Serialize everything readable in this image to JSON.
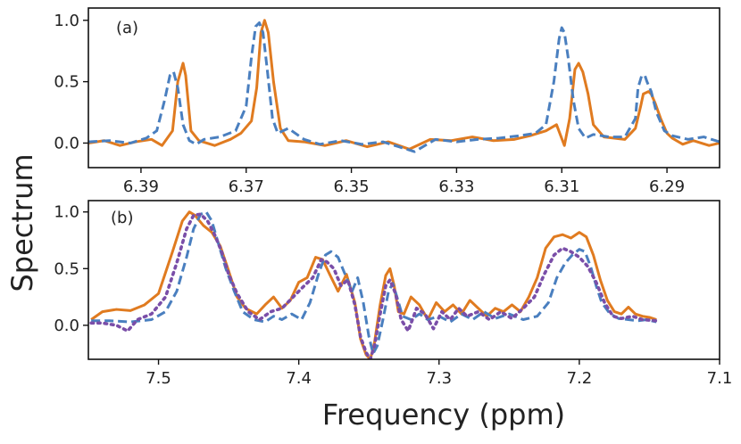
{
  "chart_data": [
    {
      "type": "line",
      "panel_label": "(a)",
      "xlim": [
        6.4,
        6.28
      ],
      "ylim": [
        -0.2,
        1.1
      ],
      "x_ticks": [
        6.39,
        6.37,
        6.35,
        6.33,
        6.31,
        6.29
      ],
      "x_tick_labels": [
        "6.39",
        "6.37",
        "6.35",
        "6.33",
        "6.31",
        "6.29"
      ],
      "y_ticks": [
        0.0,
        0.5,
        1.0
      ],
      "y_tick_labels": [
        "0.0",
        "0.5",
        "1.0"
      ],
      "series": [
        {
          "name": "solid",
          "color": "#e07b20",
          "style": "solid",
          "x": [
            6.4,
            6.397,
            6.394,
            6.391,
            6.388,
            6.386,
            6.384,
            6.383,
            6.382,
            6.3815,
            6.3805,
            6.379,
            6.376,
            6.373,
            6.371,
            6.369,
            6.368,
            6.3672,
            6.3665,
            6.3658,
            6.3648,
            6.3635,
            6.362,
            6.359,
            6.355,
            6.351,
            6.347,
            6.343,
            6.339,
            6.335,
            6.331,
            6.327,
            6.323,
            6.319,
            6.316,
            6.313,
            6.311,
            6.3095,
            6.3085,
            6.3075,
            6.3068,
            6.306,
            6.305,
            6.304,
            6.302,
            6.3,
            6.298,
            6.296,
            6.295,
            6.2945,
            6.2935,
            6.293,
            6.2922,
            6.2912,
            6.29,
            6.289,
            6.287,
            6.285,
            6.282,
            6.28
          ],
          "y": [
            0.0,
            0.02,
            -0.02,
            0.01,
            0.03,
            -0.02,
            0.1,
            0.5,
            0.65,
            0.55,
            0.1,
            0.02,
            -0.02,
            0.03,
            0.08,
            0.18,
            0.45,
            0.9,
            1.0,
            0.9,
            0.5,
            0.12,
            0.02,
            0.01,
            -0.02,
            0.02,
            -0.03,
            0.01,
            -0.05,
            0.03,
            0.02,
            0.05,
            0.02,
            0.03,
            0.06,
            0.1,
            0.15,
            -0.02,
            0.2,
            0.6,
            0.65,
            0.58,
            0.4,
            0.15,
            0.05,
            0.04,
            0.03,
            0.12,
            0.3,
            0.4,
            0.42,
            0.4,
            0.32,
            0.2,
            0.08,
            0.04,
            -0.01,
            0.02,
            -0.02,
            0.0
          ]
        },
        {
          "name": "dashed",
          "color": "#4a7fbf",
          "style": "dashed",
          "x": [
            6.4,
            6.396,
            6.392,
            6.389,
            6.387,
            6.3855,
            6.3845,
            6.3838,
            6.383,
            6.382,
            6.3808,
            6.3795,
            6.378,
            6.375,
            6.372,
            6.37,
            6.369,
            6.3682,
            6.3675,
            6.3668,
            6.366,
            6.365,
            6.364,
            6.362,
            6.359,
            6.356,
            6.352,
            6.348,
            6.344,
            6.341,
            6.338,
            6.334,
            6.33,
            6.326,
            6.322,
            6.318,
            6.315,
            6.313,
            6.3115,
            6.3105,
            6.31,
            6.3095,
            6.3088,
            6.3078,
            6.3068,
            6.3055,
            6.304,
            6.301,
            6.298,
            6.296,
            6.2955,
            6.2948,
            6.2942,
            6.2938,
            6.293,
            6.292,
            6.2905,
            6.289,
            6.286,
            6.283,
            6.28
          ],
          "y": [
            0.01,
            0.02,
            0.0,
            0.04,
            0.1,
            0.35,
            0.55,
            0.58,
            0.45,
            0.15,
            0.02,
            -0.01,
            0.03,
            0.05,
            0.1,
            0.3,
            0.7,
            0.95,
            0.98,
            0.9,
            0.6,
            0.2,
            0.08,
            0.12,
            0.03,
            -0.01,
            0.02,
            -0.01,
            0.01,
            -0.03,
            -0.07,
            0.03,
            0.01,
            0.03,
            0.04,
            0.06,
            0.08,
            0.15,
            0.5,
            0.85,
            0.94,
            0.9,
            0.7,
            0.35,
            0.12,
            0.04,
            0.07,
            0.05,
            0.05,
            0.2,
            0.45,
            0.55,
            0.55,
            0.5,
            0.42,
            0.25,
            0.1,
            0.06,
            0.03,
            0.05,
            0.01
          ]
        }
      ]
    },
    {
      "type": "line",
      "panel_label": "(b)",
      "xlim": [
        7.55,
        7.1
      ],
      "ylim": [
        -0.3,
        1.1
      ],
      "x_ticks": [
        7.5,
        7.4,
        7.3,
        7.2,
        7.1
      ],
      "x_tick_labels": [
        "7.5",
        "7.4",
        "7.3",
        "7.2",
        "7.1"
      ],
      "y_ticks": [
        0.0,
        0.5,
        1.0
      ],
      "y_tick_labels": [
        "0.0",
        "0.5",
        "1.0"
      ],
      "series": [
        {
          "name": "solid",
          "color": "#e07b20",
          "style": "solid",
          "x": [
            7.548,
            7.54,
            7.53,
            7.52,
            7.51,
            7.5,
            7.49,
            7.483,
            7.478,
            7.474,
            7.468,
            7.462,
            7.456,
            7.45,
            7.444,
            7.438,
            7.43,
            7.424,
            7.418,
            7.412,
            7.406,
            7.4,
            7.394,
            7.388,
            7.383,
            7.378,
            7.372,
            7.366,
            7.36,
            7.356,
            7.352,
            7.349,
            7.346,
            7.342,
            7.338,
            7.335,
            7.332,
            7.329,
            7.325,
            7.32,
            7.314,
            7.308,
            7.302,
            7.296,
            7.29,
            7.284,
            7.278,
            7.272,
            7.266,
            7.26,
            7.254,
            7.248,
            7.242,
            7.236,
            7.23,
            7.224,
            7.218,
            7.212,
            7.206,
            7.2,
            7.195,
            7.19,
            7.185,
            7.18,
            7.175,
            7.17,
            7.165,
            7.16,
            7.155,
            7.15,
            7.145
          ],
          "y": [
            0.05,
            0.12,
            0.14,
            0.13,
            0.18,
            0.28,
            0.65,
            0.92,
            1.0,
            0.97,
            0.88,
            0.82,
            0.7,
            0.48,
            0.25,
            0.15,
            0.1,
            0.18,
            0.25,
            0.15,
            0.22,
            0.38,
            0.42,
            0.6,
            0.58,
            0.45,
            0.3,
            0.45,
            0.2,
            -0.12,
            -0.26,
            -0.3,
            -0.15,
            0.18,
            0.44,
            0.5,
            0.35,
            0.12,
            0.1,
            0.25,
            0.18,
            0.05,
            0.2,
            0.12,
            0.18,
            0.1,
            0.22,
            0.15,
            0.08,
            0.15,
            0.12,
            0.18,
            0.12,
            0.25,
            0.42,
            0.68,
            0.78,
            0.8,
            0.77,
            0.82,
            0.78,
            0.62,
            0.4,
            0.22,
            0.12,
            0.1,
            0.16,
            0.1,
            0.08,
            0.07,
            0.05
          ]
        },
        {
          "name": "dashed",
          "color": "#4a7fbf",
          "style": "dashed",
          "x": [
            7.548,
            7.535,
            7.52,
            7.505,
            7.495,
            7.487,
            7.48,
            7.475,
            7.47,
            7.466,
            7.462,
            7.458,
            7.452,
            7.446,
            7.44,
            7.432,
            7.424,
            7.418,
            7.412,
            7.405,
            7.398,
            7.392,
            7.386,
            7.381,
            7.377,
            7.372,
            7.367,
            7.362,
            7.358,
            7.354,
            7.35,
            7.347,
            7.344,
            7.34,
            7.336,
            7.333,
            7.33,
            7.326,
            7.32,
            7.314,
            7.308,
            7.3,
            7.292,
            7.284,
            7.276,
            7.268,
            7.26,
            7.25,
            7.24,
            7.23,
            7.222,
            7.216,
            7.21,
            7.205,
            7.2,
            7.196,
            7.192,
            7.188,
            7.184,
            7.178,
            7.172,
            7.165,
            7.158,
            7.152,
            7.145
          ],
          "y": [
            0.04,
            0.04,
            0.03,
            0.05,
            0.12,
            0.3,
            0.6,
            0.85,
            0.98,
            1.0,
            0.92,
            0.75,
            0.5,
            0.3,
            0.12,
            0.05,
            0.03,
            0.08,
            0.05,
            0.1,
            0.05,
            0.2,
            0.45,
            0.62,
            0.65,
            0.6,
            0.45,
            0.3,
            0.42,
            0.2,
            -0.1,
            -0.25,
            -0.18,
            0.05,
            0.3,
            0.37,
            0.25,
            0.08,
            0.05,
            0.1,
            0.05,
            0.08,
            0.03,
            0.1,
            0.05,
            0.12,
            0.06,
            0.1,
            0.05,
            0.08,
            0.2,
            0.42,
            0.55,
            0.62,
            0.67,
            0.65,
            0.52,
            0.35,
            0.2,
            0.1,
            0.06,
            0.05,
            0.04,
            0.05,
            0.03
          ]
        },
        {
          "name": "dotted",
          "color": "#7a4ea8",
          "style": "dotted",
          "x": [
            7.548,
            7.54,
            7.53,
            7.522,
            7.515,
            7.505,
            7.495,
            7.487,
            7.48,
            7.475,
            7.47,
            7.465,
            7.46,
            7.455,
            7.45,
            7.444,
            7.436,
            7.428,
            7.42,
            7.412,
            7.404,
            7.396,
            7.39,
            7.384,
            7.38,
            7.375,
            7.37,
            7.365,
            7.36,
            7.356,
            7.352,
            7.349,
            7.346,
            7.342,
            7.338,
            7.335,
            7.331,
            7.327,
            7.322,
            7.316,
            7.31,
            7.304,
            7.298,
            7.292,
            7.286,
            7.28,
            7.272,
            7.264,
            7.256,
            7.248,
            7.24,
            7.232,
            7.225,
            7.218,
            7.212,
            7.206,
            7.2,
            7.194,
            7.188,
            7.182,
            7.176,
            7.17,
            7.162,
            7.155,
            7.145
          ],
          "y": [
            0.02,
            0.02,
            0.0,
            -0.05,
            0.05,
            0.1,
            0.25,
            0.55,
            0.85,
            0.97,
            0.98,
            0.92,
            0.8,
            0.65,
            0.45,
            0.28,
            0.12,
            0.05,
            0.12,
            0.15,
            0.25,
            0.35,
            0.42,
            0.58,
            0.56,
            0.5,
            0.35,
            0.4,
            0.18,
            -0.1,
            -0.24,
            -0.3,
            -0.18,
            0.1,
            0.35,
            0.4,
            0.28,
            0.05,
            -0.05,
            0.15,
            0.1,
            -0.03,
            0.12,
            0.05,
            0.15,
            0.08,
            0.12,
            0.05,
            0.12,
            0.06,
            0.15,
            0.25,
            0.45,
            0.62,
            0.68,
            0.65,
            0.6,
            0.52,
            0.38,
            0.2,
            0.08,
            0.06,
            0.08,
            0.05,
            0.04
          ]
        }
      ]
    }
  ],
  "labels": {
    "ylabel": "Spectrum",
    "xlabel": "Frequency (ppm)"
  }
}
